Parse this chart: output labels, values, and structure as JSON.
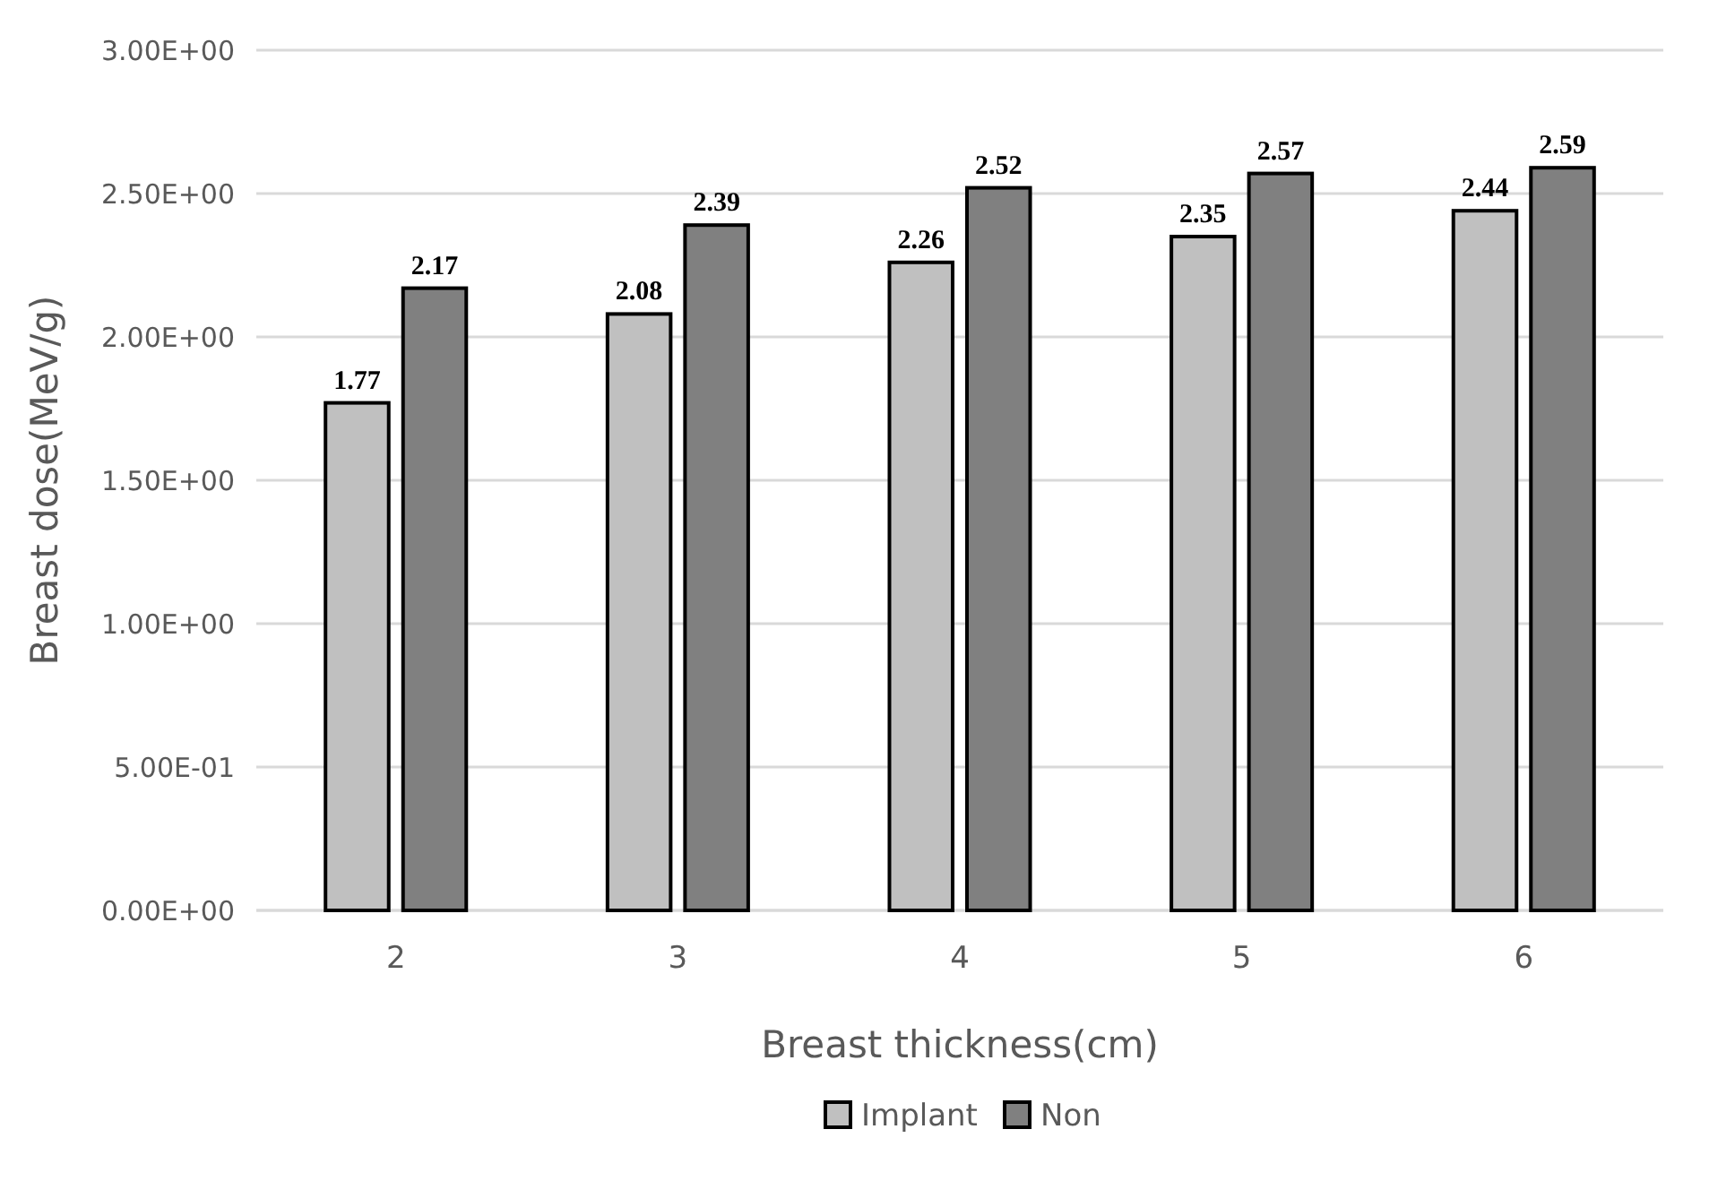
{
  "chart_data": {
    "type": "bar",
    "xlabel": "Breast thickness(cm)",
    "ylabel": "Breast dose(MeV/g)",
    "categories": [
      "2",
      "3",
      "4",
      "5",
      "6"
    ],
    "series": [
      {
        "name": "Implant",
        "color": "#c0c0c0",
        "values": [
          1.77,
          2.08,
          2.26,
          2.35,
          2.44
        ]
      },
      {
        "name": "Non",
        "color": "#808080",
        "values": [
          2.17,
          2.39,
          2.52,
          2.57,
          2.59
        ]
      }
    ],
    "ylim": [
      0,
      3
    ],
    "yticks": [
      {
        "value": 0,
        "label": "0.00E+00"
      },
      {
        "value": 0.5,
        "label": "5.00E-01"
      },
      {
        "value": 1,
        "label": "1.00E+00"
      },
      {
        "value": 1.5,
        "label": "1.50E+00"
      },
      {
        "value": 2,
        "label": "2.00E+00"
      },
      {
        "value": 2.5,
        "label": "2.50E+00"
      },
      {
        "value": 3,
        "label": "3.00E+00"
      }
    ],
    "grid": "y",
    "legend": "bottom",
    "data_labels": true
  }
}
